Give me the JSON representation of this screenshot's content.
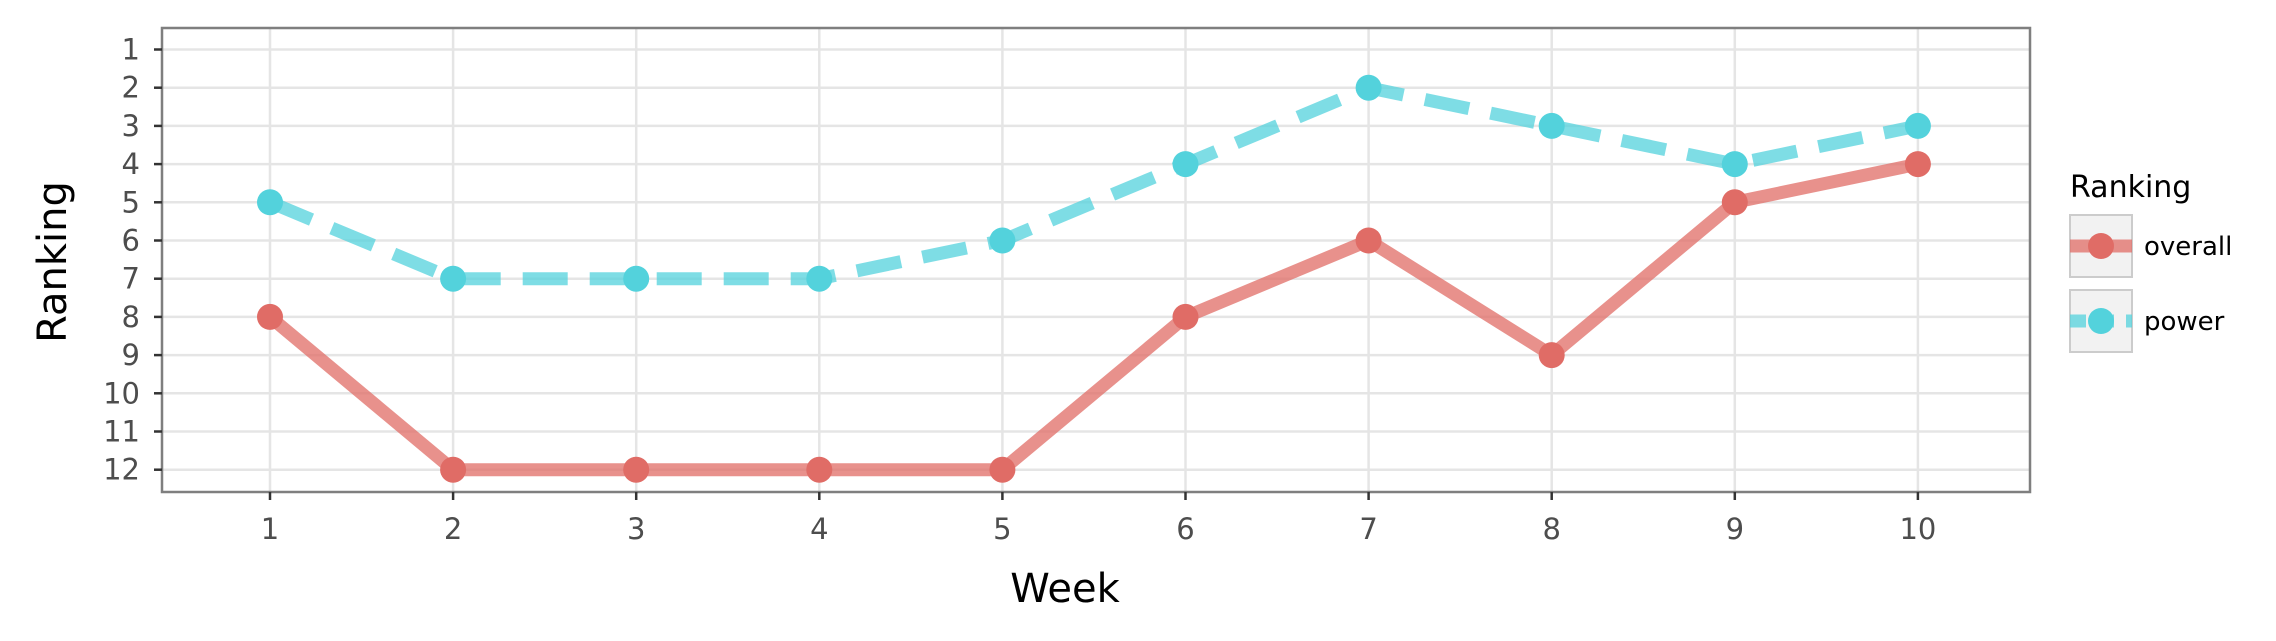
{
  "chart_data": {
    "type": "line",
    "xlabel": "Week",
    "ylabel": "Ranking",
    "x": [
      1,
      2,
      3,
      4,
      5,
      6,
      7,
      8,
      9,
      10
    ],
    "x_ticks": [
      "1",
      "2",
      "3",
      "4",
      "5",
      "6",
      "7",
      "8",
      "9",
      "10"
    ],
    "y_ticks": [
      "1",
      "2",
      "3",
      "4",
      "5",
      "6",
      "7",
      "8",
      "9",
      "10",
      "11",
      "12"
    ],
    "ylim": [
      1,
      12
    ],
    "y_reversed": true,
    "grid": true,
    "legend": {
      "title": "Ranking",
      "position": "right"
    },
    "series": [
      {
        "name": "overall",
        "values": [
          8,
          12,
          12,
          12,
          12,
          8,
          6,
          9,
          5,
          4
        ],
        "color": "#e06c66",
        "linestyle": "solid"
      },
      {
        "name": "power",
        "values": [
          5,
          7,
          7,
          7,
          6,
          4,
          2,
          3,
          4,
          3
        ],
        "color": "#53d2dc",
        "linestyle": "dashed"
      }
    ]
  }
}
